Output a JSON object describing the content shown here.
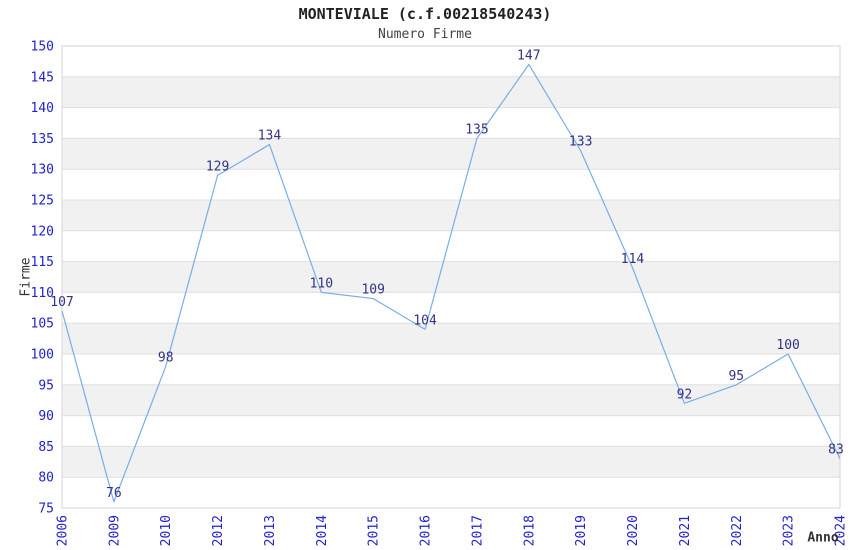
{
  "title": "MONTEVIALE (c.f.00218540243)",
  "subtitle": "Numero Firme",
  "chart_data": {
    "type": "line",
    "title": "MONTEVIALE (c.f.00218540243)",
    "subtitle": "Numero Firme",
    "xlabel": "Anno",
    "ylabel": "Firme",
    "categories": [
      "2006",
      "2009",
      "2010",
      "2012",
      "2013",
      "2014",
      "2015",
      "2016",
      "2017",
      "2018",
      "2019",
      "2020",
      "2021",
      "2022",
      "2023",
      "2024"
    ],
    "values": [
      107,
      76,
      98,
      129,
      134,
      110,
      109,
      104,
      135,
      147,
      133,
      114,
      92,
      95,
      100,
      83
    ],
    "ylim": [
      75,
      150
    ],
    "ytick_step": 5,
    "yticks": [
      75,
      80,
      85,
      90,
      95,
      100,
      105,
      110,
      115,
      120,
      125,
      130,
      135,
      140,
      145,
      150
    ],
    "grid": "horizontal-alternating-bands",
    "legend": "none",
    "point_labels_visible": true,
    "colors": {
      "line": "#7aade6",
      "tick_label": "#2323cd",
      "data_label": "#333388",
      "band_alt": "#f1f1f1",
      "grid_line": "#e0e0e0",
      "plot_border": "#d6d6d6",
      "title": "#222222",
      "subtitle": "#444444",
      "axis_title": "#333333",
      "background": "#ffffff"
    }
  }
}
